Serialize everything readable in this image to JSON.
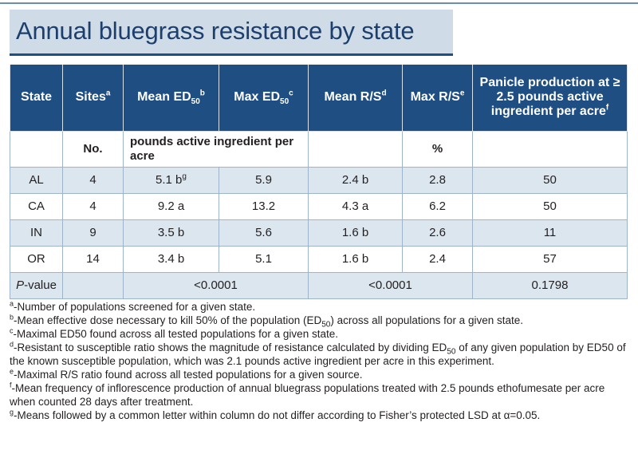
{
  "title": "Annual bluegrass resistance by state",
  "colors": {
    "header_bg": "#1f4e82",
    "title_bg": "#cfdbe7",
    "row_tint": "#dce6ef",
    "title_text": "#1c3f6e"
  },
  "headers": {
    "state": "State",
    "sites": "Sites",
    "sites_sup": "a",
    "mean_ed": "Mean ED",
    "mean_ed_sub": "50",
    "mean_ed_sup": "b",
    "max_ed": "Max ED",
    "max_ed_sub": "50",
    "max_ed_sup": "c",
    "mean_rs": "Mean R/S",
    "mean_rs_sup": "d",
    "max_rs": "Max R/S",
    "max_rs_sup": "e",
    "panicle": "Panicle production at ≥ 2.5 pounds active ingredient per acre",
    "panicle_sup": "f"
  },
  "units": {
    "sites": "No.",
    "ed": "pounds active ingredient per acre",
    "rs": "%"
  },
  "rows": [
    {
      "state": "AL",
      "sites": "4",
      "mean_ed": "5.1 b",
      "mean_ed_sup": "g",
      "max_ed": "5.9",
      "mean_rs": "2.4 b",
      "max_rs": "2.8",
      "panicle": "50"
    },
    {
      "state": "CA",
      "sites": "4",
      "mean_ed": "9.2 a",
      "mean_ed_sup": "",
      "max_ed": "13.2",
      "mean_rs": "4.3 a",
      "max_rs": "6.2",
      "panicle": "50"
    },
    {
      "state": "IN",
      "sites": "9",
      "mean_ed": "3.5 b",
      "mean_ed_sup": "",
      "max_ed": "5.6",
      "mean_rs": "1.6 b",
      "max_rs": "2.6",
      "panicle": "11"
    },
    {
      "state": "OR",
      "sites": "14",
      "mean_ed": "3.4 b",
      "mean_ed_sup": "",
      "max_ed": "5.1",
      "mean_rs": "1.6 b",
      "max_rs": "2.4",
      "panicle": "57"
    }
  ],
  "pvalue": {
    "label_italic": "P",
    "label_rest": "-value",
    "ed": "<0.0001",
    "rs": "<0.0001",
    "panicle": "0.1798"
  },
  "footnotes": {
    "a": {
      "mark": "a",
      "text": "-Number of populations screened for a given state."
    },
    "b": {
      "mark": "b",
      "pre": "-Mean effective dose necessary to kill 50% of the population (ED",
      "sub": "50",
      "post": ") across all populations for a given state."
    },
    "c": {
      "mark": "c",
      "text": "-Maximal ED50 found across all tested populations for a given state."
    },
    "d": {
      "mark": "d",
      "pre": "-Resistant to susceptible ratio shows the magnitude of resistance calculated by dividing ED",
      "sub": "50",
      "post": " of any given population by ED50 of the known susceptible population, which was 2.1 pounds active ingredient per acre in this experiment."
    },
    "e": {
      "mark": "e",
      "text": "-Maximal R/S ratio found across all tested populations for a given source."
    },
    "f": {
      "mark": "f",
      "text": "-Mean frequency of inflorescence production of annual bluegrass populations treated with 2.5 pounds ethofumesate per acre when counted 28 days after treatment."
    },
    "g": {
      "mark": "g",
      "text": "-Means followed by a common letter within column do not differ according to Fisher’s protected LSD at α=0.05."
    }
  }
}
